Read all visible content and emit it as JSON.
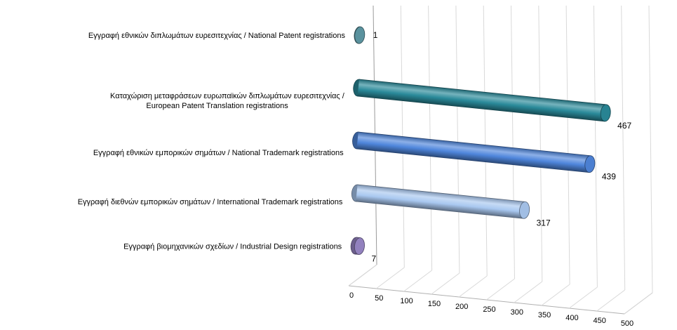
{
  "chart_data": {
    "type": "bar",
    "orientation": "horizontal",
    "style": "3d-cylinder",
    "categories": [
      [
        "Εγγραφή εθνικών διπλωμάτων ευρεσιτεχνίας / National Patent registrations"
      ],
      [
        "Καταχώριση μεταφράσεων ευρωπαϊκών διπλωμάτων ευρεσιτεχνίας /",
        "European Patent Translation registrations"
      ],
      [
        "Εγγραφή εθνικών εμπορικών σημάτων / National Trademark registrations"
      ],
      [
        "Εγγραφή διεθνών εμπορικών σημάτων / International Trademark registrations"
      ],
      [
        "Εγγραφή βιομηχανικών σχεδίων / Industrial Design registrations"
      ]
    ],
    "values": [
      1,
      467,
      439,
      317,
      7
    ],
    "data_labels": [
      "1",
      "467",
      "439",
      "317",
      "7"
    ],
    "colors": [
      "#5f9aa6",
      "#2a8a9a",
      "#4f86dc",
      "#a9c8f0",
      "#9a88c8"
    ],
    "xticks": [
      "0",
      "50",
      "100",
      "150",
      "200",
      "250",
      "300",
      "350",
      "400",
      "450",
      "500"
    ],
    "xlim": [
      0,
      500
    ],
    "grid": true,
    "legend": "none"
  }
}
